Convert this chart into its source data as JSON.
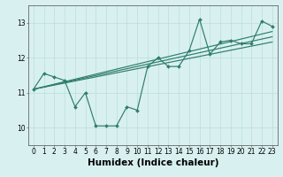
{
  "x": [
    0,
    1,
    2,
    3,
    4,
    5,
    6,
    7,
    8,
    9,
    10,
    11,
    12,
    13,
    14,
    15,
    16,
    17,
    18,
    19,
    20,
    21,
    22,
    23
  ],
  "y_main": [
    11.1,
    11.55,
    11.45,
    11.35,
    10.6,
    11.0,
    10.05,
    10.05,
    10.05,
    10.6,
    10.5,
    11.75,
    12.0,
    11.75,
    11.75,
    12.2,
    13.1,
    12.1,
    12.45,
    12.5,
    12.4,
    12.4,
    13.05,
    12.9
  ],
  "trend_lines": [
    {
      "x0": 0,
      "y0": 11.1,
      "x1": 23,
      "y1": 12.45
    },
    {
      "x0": 0,
      "y0": 11.1,
      "x1": 23,
      "y1": 12.6
    },
    {
      "x0": 0,
      "y0": 11.1,
      "x1": 23,
      "y1": 12.75
    }
  ],
  "xlabel": "Humidex (Indice chaleur)",
  "ylim": [
    9.5,
    13.5
  ],
  "xlim": [
    -0.5,
    23.5
  ],
  "yticks": [
    10,
    11,
    12,
    13
  ],
  "xticks": [
    0,
    1,
    2,
    3,
    4,
    5,
    6,
    7,
    8,
    9,
    10,
    11,
    12,
    13,
    14,
    15,
    16,
    17,
    18,
    19,
    20,
    21,
    22,
    23
  ],
  "line_color": "#2e7d6e",
  "bg_color": "#d9f0f0",
  "grid_color": "#b8dede",
  "tick_fontsize": 5.5,
  "xlabel_fontsize": 7.5
}
